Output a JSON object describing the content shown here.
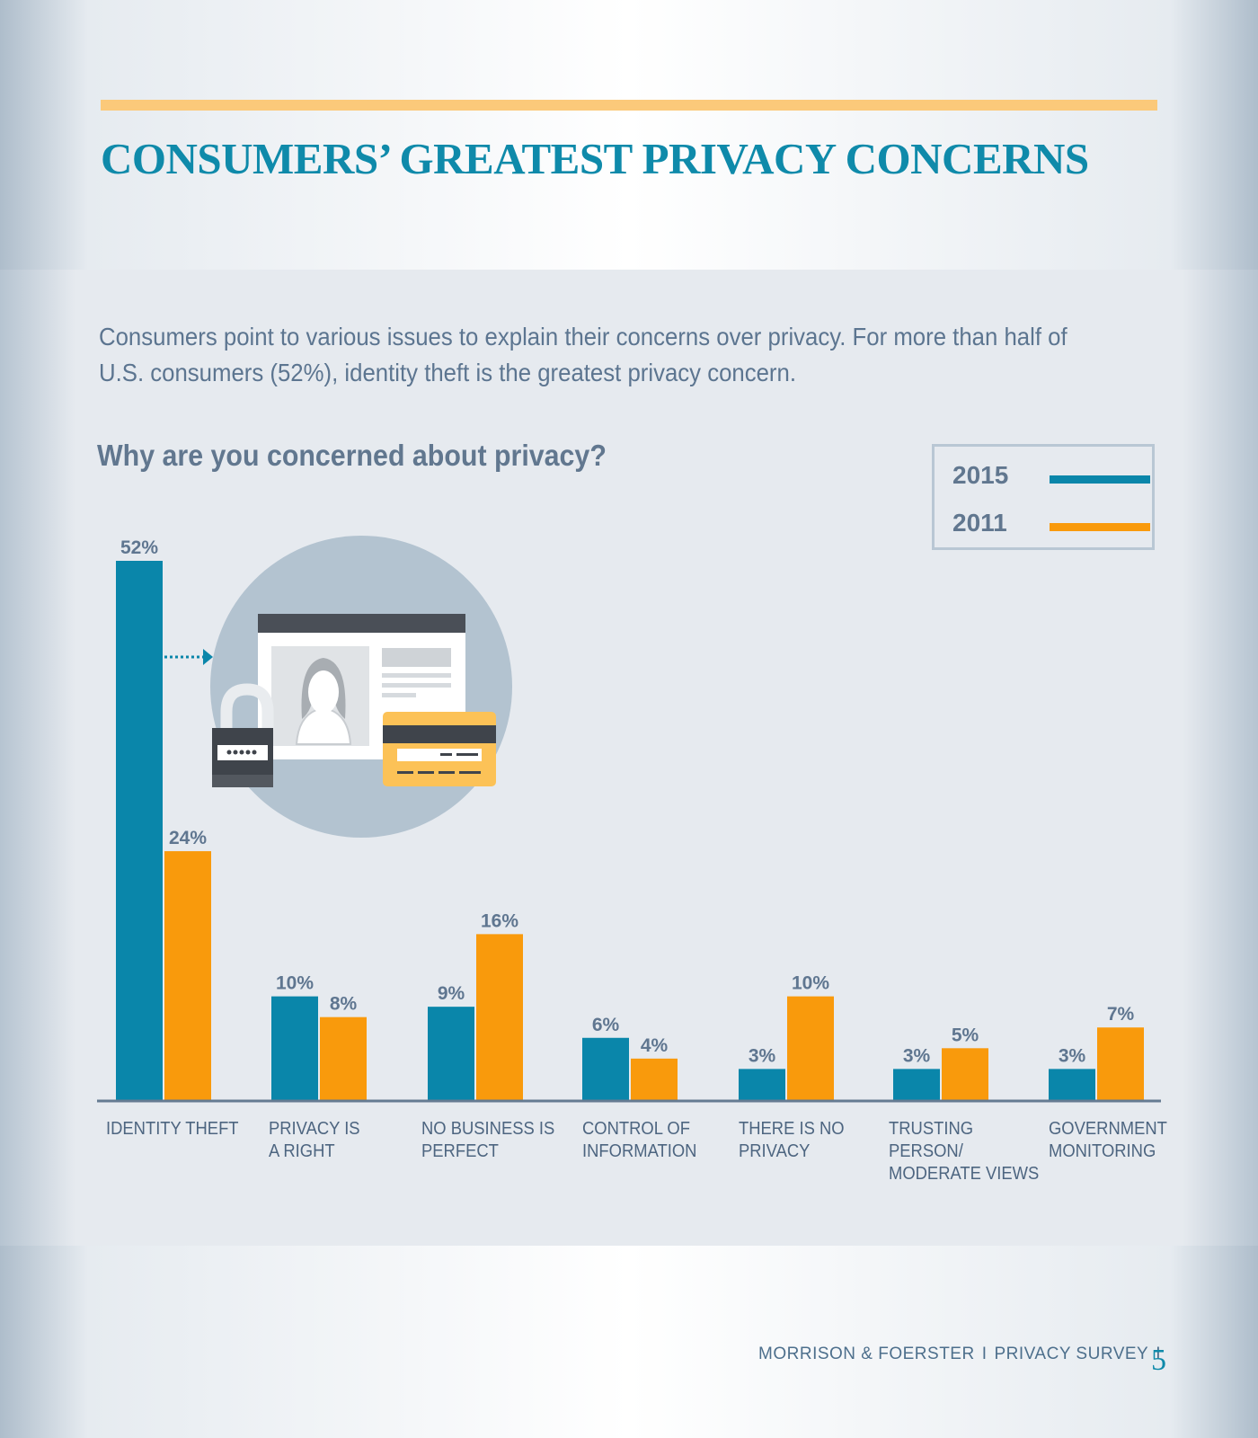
{
  "title": "CONSUMERS’ GREATEST PRIVACY CONCERNS",
  "intro": "Consumers point to various issues to explain their concerns over privacy. For more than half of U.S. consumers (52%), identity theft is the greatest privacy concern.",
  "question": "Why are you concerned about privacy?",
  "legend": [
    {
      "label": "2015",
      "color": "#0a86aa"
    },
    {
      "label": "2011",
      "color": "#f99a0c"
    }
  ],
  "chart_data": {
    "type": "bar",
    "title": "Why are you concerned about privacy?",
    "categories": [
      "IDENTITY THEFT",
      "PRIVACY IS\nA RIGHT",
      "NO BUSINESS IS\nPERFECT",
      "CONTROL OF\nINFORMATION",
      "THERE IS NO\nPRIVACY",
      "TRUSTING\nPERSON/\nMODERATE VIEWS",
      "GOVERNMENT\nMONITORING"
    ],
    "series": [
      {
        "name": "2015",
        "color": "#0a86aa",
        "values": [
          52,
          10,
          9,
          6,
          3,
          3,
          3
        ]
      },
      {
        "name": "2011",
        "color": "#f99a0c",
        "values": [
          24,
          8,
          16,
          4,
          10,
          5,
          7
        ]
      }
    ],
    "value_suffix": "%",
    "ylim": [
      0,
      52
    ],
    "grid": false,
    "legend_position": "top-right",
    "illustration": "identity-theft-illustration"
  },
  "footer": {
    "company": "MORRISON & FOERSTER",
    "survey": "PRIVACY SURVEY",
    "page_number": "5"
  }
}
